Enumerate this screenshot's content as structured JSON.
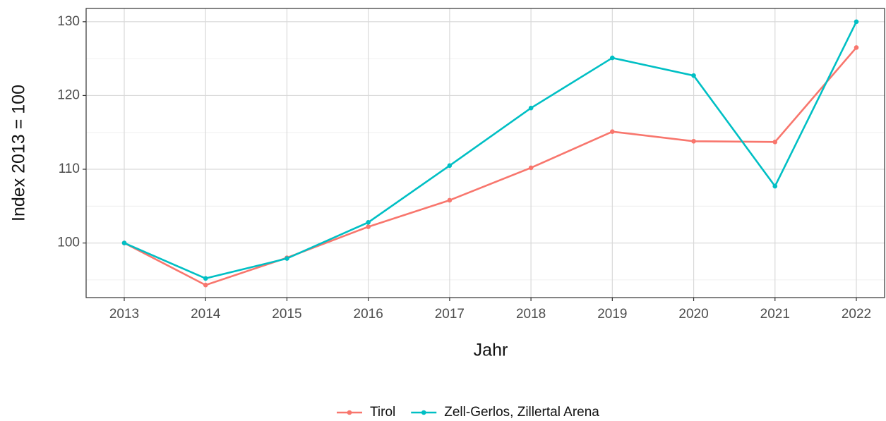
{
  "chart_data": {
    "type": "line",
    "x_label": "Jahr",
    "y_label": "Index  2013  = 100",
    "categories": [
      "2013",
      "2014",
      "2015",
      "2016",
      "2017",
      "2018",
      "2019",
      "2020",
      "2021",
      "2022"
    ],
    "series": [
      {
        "name": "Tirol",
        "color": "#f8766d",
        "values": [
          100,
          94.3,
          98.0,
          102.2,
          105.8,
          110.2,
          115.1,
          113.8,
          113.7,
          126.5
        ]
      },
      {
        "name": "Zell-Gerlos, Zillertal Arena",
        "color": "#00bfc4",
        "values": [
          100,
          95.2,
          97.9,
          102.8,
          110.5,
          118.3,
          125.1,
          122.7,
          107.7,
          130.0
        ]
      }
    ],
    "ylim": [
      92.6,
      131.8
    ],
    "yticks": [
      100,
      110,
      120,
      130
    ],
    "yminor": [
      95,
      105,
      115,
      125
    ],
    "grid": true,
    "legend": "bottom"
  }
}
